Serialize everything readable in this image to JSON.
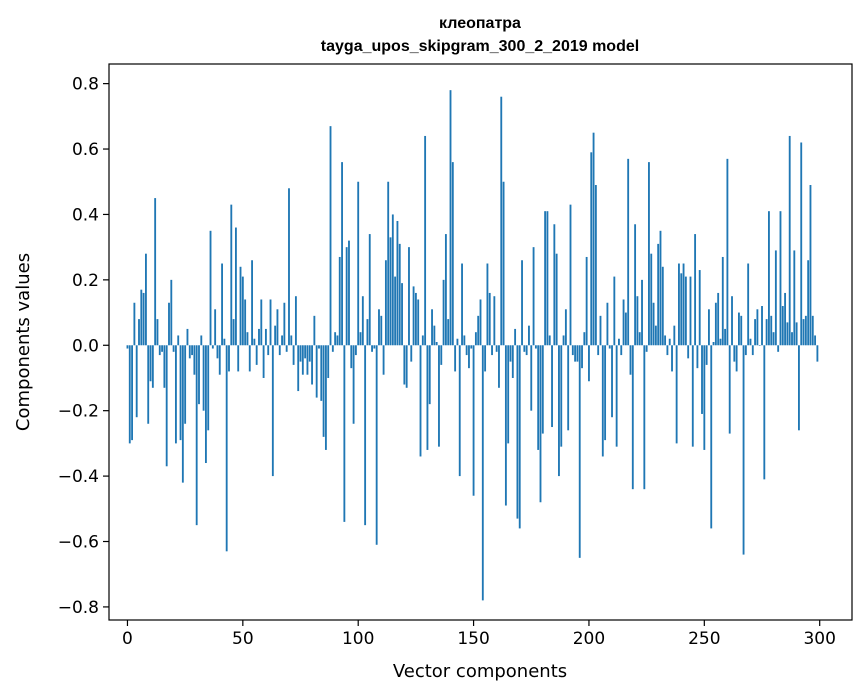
{
  "chart_data": {
    "type": "bar",
    "title": "клеопатра",
    "subtitle": "tayga_upos_skipgram_300_2_2019 model",
    "xlabel": "Vector components",
    "ylabel": "Components values",
    "xlim": [
      -8,
      314
    ],
    "ylim": [
      -0.84,
      0.86
    ],
    "xticks": [
      0,
      50,
      100,
      150,
      200,
      250,
      300
    ],
    "xtick_labels": [
      "0",
      "50",
      "100",
      "150",
      "200",
      "250",
      "300"
    ],
    "yticks": [
      -0.8,
      -0.6,
      -0.4,
      -0.2,
      0.0,
      0.2,
      0.4,
      0.6,
      0.8
    ],
    "ytick_labels": [
      "−0.8",
      "−0.6",
      "−0.4",
      "−0.2",
      "0.0",
      "0.2",
      "0.4",
      "0.6",
      "0.8"
    ],
    "bar_color": "#1f77b4",
    "grid": false,
    "values": [
      -0.01,
      -0.3,
      -0.29,
      0.13,
      -0.22,
      0.08,
      0.17,
      0.16,
      0.28,
      -0.24,
      -0.11,
      -0.13,
      0.45,
      0.08,
      -0.03,
      -0.02,
      -0.13,
      -0.37,
      0.13,
      0.2,
      -0.02,
      -0.3,
      0.03,
      -0.29,
      -0.42,
      -0.24,
      0.05,
      -0.04,
      -0.03,
      -0.09,
      -0.55,
      -0.18,
      0.03,
      -0.2,
      -0.36,
      -0.26,
      0.35,
      -0.01,
      0.11,
      -0.04,
      -0.09,
      0.25,
      0.02,
      -0.63,
      -0.08,
      0.43,
      0.08,
      0.36,
      -0.08,
      0.24,
      0.21,
      0.14,
      0.04,
      -0.08,
      0.26,
      0.02,
      -0.06,
      0.05,
      0.14,
      -0.1,
      0.05,
      -0.03,
      0.14,
      -0.4,
      0.06,
      0.11,
      -0.03,
      0.03,
      0.13,
      -0.02,
      0.48,
      0.03,
      -0.06,
      0.15,
      -0.14,
      -0.05,
      -0.09,
      -0.04,
      -0.09,
      -0.05,
      -0.12,
      0.09,
      -0.16,
      -0.01,
      -0.17,
      -0.28,
      -0.32,
      -0.1,
      0.67,
      -0.02,
      0.04,
      0.03,
      0.27,
      0.56,
      -0.54,
      0.3,
      0.32,
      -0.07,
      -0.24,
      -0.03,
      0.5,
      0.04,
      0.15,
      -0.55,
      0.08,
      0.34,
      -0.02,
      -0.01,
      -0.61,
      0.11,
      0.09,
      -0.09,
      0.26,
      0.5,
      0.33,
      0.4,
      0.21,
      0.38,
      0.31,
      0.19,
      -0.12,
      -0.13,
      0.3,
      -0.05,
      0.18,
      0.16,
      0.14,
      -0.34,
      0.03,
      0.64,
      -0.32,
      -0.18,
      0.11,
      0.06,
      0.01,
      -0.31,
      -0.06,
      0.2,
      0.34,
      0.08,
      0.78,
      0.56,
      -0.08,
      0.02,
      -0.4,
      0.25,
      0.03,
      -0.03,
      -0.07,
      -0.01,
      -0.46,
      0.04,
      0.09,
      0.14,
      -0.78,
      -0.08,
      0.25,
      0.16,
      -0.03,
      0.15,
      -0.02,
      -0.13,
      0.76,
      0.5,
      -0.49,
      -0.3,
      -0.05,
      -0.1,
      0.05,
      -0.53,
      -0.56,
      0.26,
      -0.02,
      -0.03,
      0.06,
      -0.2,
      0.3,
      -0.01,
      -0.32,
      -0.48,
      -0.27,
      0.41,
      0.41,
      0.03,
      -0.25,
      0.37,
      0.28,
      -0.4,
      -0.31,
      0.03,
      0.11,
      -0.26,
      0.43,
      -0.03,
      -0.05,
      -0.05,
      -0.65,
      -0.07,
      0.04,
      0.27,
      -0.11,
      0.59,
      0.65,
      0.49,
      -0.03,
      0.09,
      -0.34,
      -0.29,
      0.13,
      -0.01,
      -0.22,
      0.21,
      -0.31,
      0.02,
      -0.03,
      0.14,
      0.1,
      0.57,
      -0.09,
      -0.44,
      0.37,
      0.15,
      0.04,
      0.2,
      -0.44,
      -0.02,
      0.56,
      0.28,
      0.13,
      0.06,
      0.31,
      0.35,
      0.24,
      0.03,
      -0.03,
      0.02,
      -0.08,
      0.06,
      -0.3,
      0.25,
      0.22,
      0.25,
      0.21,
      -0.04,
      0.21,
      -0.31,
      0.34,
      -0.07,
      0.23,
      -0.21,
      -0.32,
      -0.06,
      0.11,
      -0.56,
      0.01,
      0.13,
      0.16,
      0.02,
      0.27,
      0.05,
      0.57,
      -0.27,
      0.15,
      -0.05,
      -0.08,
      0.1,
      0.09,
      -0.64,
      -0.03,
      0.25,
      0.02,
      -0.03,
      0.08,
      0.11,
      0.0,
      0.12,
      -0.41,
      0.08,
      0.41,
      0.09,
      0.04,
      0.29,
      -0.02,
      0.41,
      0.12,
      0.16,
      0.07,
      0.64,
      0.04,
      0.29,
      0.07,
      -0.26,
      0.62,
      0.08,
      0.09,
      0.26,
      0.49,
      0.09,
      0.03,
      -0.05
    ]
  }
}
